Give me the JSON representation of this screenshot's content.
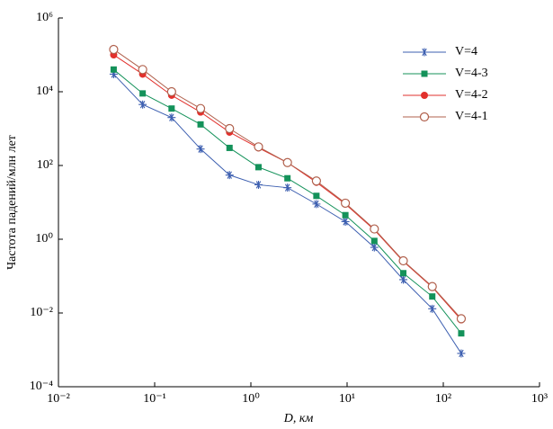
{
  "chart_data": {
    "type": "line",
    "log_x": true,
    "log_y": true,
    "x_label": "D, км",
    "y_label": "Частота падений/млн лет",
    "x": [
      0.0375,
      0.075,
      0.15,
      0.3,
      0.6,
      1.2,
      2.4,
      4.8,
      9.6,
      19.2,
      38.4,
      76.8,
      153.6
    ],
    "xlim": [
      0.01,
      1000
    ],
    "xticks": [
      {
        "value": 0.01,
        "label": "10⁻²"
      },
      {
        "value": 0.1,
        "label": "10⁻¹"
      },
      {
        "value": 1,
        "label": "10⁰"
      },
      {
        "value": 10,
        "label": "10¹"
      },
      {
        "value": 100,
        "label": "10²"
      },
      {
        "value": 1000,
        "label": "10³"
      }
    ],
    "ylim": [
      0.0001,
      1000000
    ],
    "yticks": [
      {
        "value": 0.0001,
        "label": "10⁻⁴"
      },
      {
        "value": 0.01,
        "label": "10⁻²"
      },
      {
        "value": 1,
        "label": "10⁰"
      },
      {
        "value": 100,
        "label": "10²"
      },
      {
        "value": 10000,
        "label": "10⁴"
      },
      {
        "value": 1000000,
        "label": "10⁶"
      }
    ],
    "legend": "upper right",
    "series": [
      {
        "name": "V=4",
        "color": "#3d5fb0",
        "marker": "asterisk",
        "values": [
          30000,
          4500,
          2000,
          280,
          55,
          30,
          25,
          9,
          3,
          0.6,
          0.08,
          0.013,
          0.0008
        ]
      },
      {
        "name": "V=4-3",
        "color": "#14925a",
        "marker": "square",
        "values": [
          40000,
          9000,
          3500,
          1300,
          300,
          90,
          45,
          15,
          4.5,
          0.9,
          0.12,
          0.028,
          0.0028
        ]
      },
      {
        "name": "V=4-2",
        "color": "#e2302c",
        "marker": "circle",
        "values": [
          100000,
          30000,
          8000,
          2800,
          800,
          300,
          120,
          35,
          9,
          1.8,
          0.25,
          0.05,
          0.0065
        ]
      },
      {
        "name": "V=4-1",
        "color": "#b0604c",
        "marker": "open-circle",
        "values": [
          140000,
          40000,
          10000,
          3500,
          1000,
          320,
          120,
          38,
          9.5,
          1.9,
          0.26,
          0.052,
          0.007
        ]
      }
    ]
  }
}
